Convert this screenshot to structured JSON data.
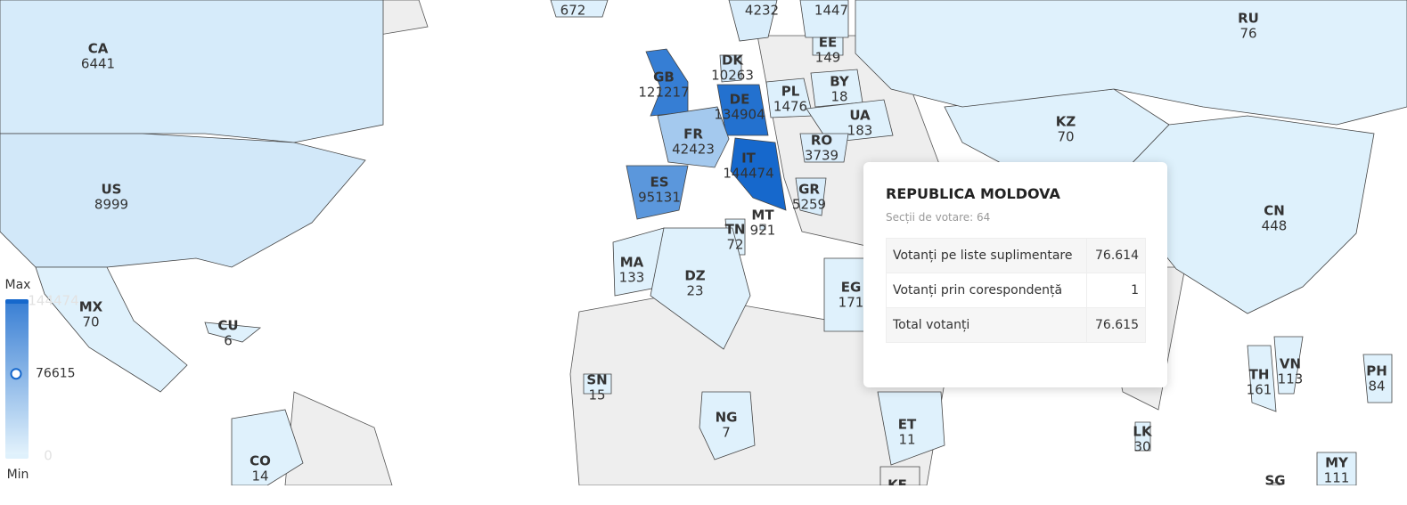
{
  "countries": [
    {
      "code": "CA",
      "value": 6441
    },
    {
      "code": "US",
      "value": 8999
    },
    {
      "code": "MX",
      "value": 70
    },
    {
      "code": "CU",
      "value": 6
    },
    {
      "code": "CO",
      "value": 14
    },
    {
      "code": "GB",
      "value": 121217
    },
    {
      "code": "DK",
      "value": 10263
    },
    {
      "code": "DE",
      "value": 134904
    },
    {
      "code": "PL",
      "value": 1476
    },
    {
      "code": "BY",
      "value": 18
    },
    {
      "code": "EE",
      "value": 149
    },
    {
      "code": "UA",
      "value": 183
    },
    {
      "code": "FR",
      "value": 42423
    },
    {
      "code": "RO",
      "value": 3739
    },
    {
      "code": "IT",
      "value": 144474
    },
    {
      "code": "ES",
      "value": 95131
    },
    {
      "code": "GR",
      "value": 5259
    },
    {
      "code": "TN",
      "value": 72
    },
    {
      "code": "MT",
      "value": 921
    },
    {
      "code": "MA",
      "value": 133
    },
    {
      "code": "DZ",
      "value": 23
    },
    {
      "code": "EG",
      "value": 171
    },
    {
      "code": "SN",
      "value": 15
    },
    {
      "code": "NG",
      "value": 7
    },
    {
      "code": "ET",
      "value": 11
    },
    {
      "code": "KZ",
      "value": 70
    },
    {
      "code": "RU",
      "value": 76
    },
    {
      "code": "CN",
      "value": 448
    },
    {
      "code": "TH",
      "value": 161
    },
    {
      "code": "VN",
      "value": 113
    },
    {
      "code": "PH",
      "value": 84
    },
    {
      "code": "LK",
      "value": 30
    },
    {
      "code": "MY",
      "value": 111
    },
    {
      "code": "NO",
      "value": 4232
    },
    {
      "code": "FI",
      "value": 1447
    },
    {
      "code": null,
      "value": 672
    },
    {
      "code": "KE",
      "value": null
    },
    {
      "code": "SG",
      "value": null
    }
  ],
  "legend": {
    "max_label": "Max",
    "min_label": "Min",
    "max": 144474,
    "min": 0,
    "current": 76615,
    "color_min": "#dff1fc",
    "color_max": "#1668cc"
  },
  "tooltip": {
    "title": "REPUBLICA MOLDOVA",
    "subtitle": "Secții de votare: 64",
    "rows": [
      [
        "Votanți pe liste suplimentare",
        "76.614"
      ],
      [
        "Votanți prin corespondență",
        "1"
      ],
      [
        "Total votanți",
        "76.615"
      ]
    ]
  }
}
